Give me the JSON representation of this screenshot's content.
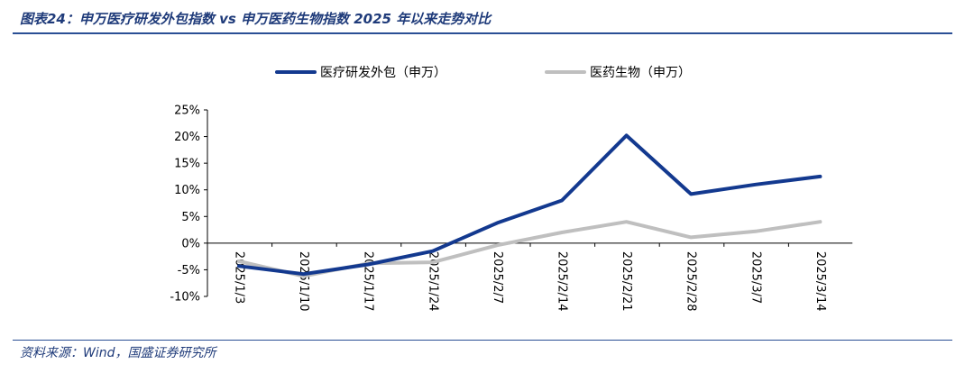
{
  "header": {
    "title": "图表24：申万医疗研发外包指数 vs 申万医药生物指数 2025 年以来走势对比"
  },
  "footer": {
    "source": "资料来源：Wind，国盛证券研究所"
  },
  "chart_data": {
    "type": "line",
    "title": "",
    "xlabel": "",
    "ylabel": "",
    "categories": [
      "2025/1/3",
      "2025/1/10",
      "2025/1/17",
      "2025/1/24",
      "2025/2/7",
      "2025/2/14",
      "2025/2/21",
      "2025/2/28",
      "2025/3/7",
      "2025/3/14"
    ],
    "ylim": [
      -10,
      25
    ],
    "yticks": [
      -10,
      -5,
      0,
      5,
      10,
      15,
      20,
      25
    ],
    "ytick_labels": [
      "-10%",
      "-5%",
      "0%",
      "5%",
      "10%",
      "15%",
      "20%",
      "25%"
    ],
    "grid": false,
    "legend_position": "top",
    "series": [
      {
        "name": "医疗研发外包（申万）",
        "color": "#13398f",
        "values": [
          -4.3,
          -5.8,
          -4.0,
          -1.5,
          3.8,
          8.0,
          20.2,
          9.2,
          11.0,
          12.5
        ]
      },
      {
        "name": "医药生物（申万）",
        "color": "#bfbfbf",
        "values": [
          -3.4,
          -6.2,
          -3.8,
          -3.6,
          -0.4,
          2.0,
          4.0,
          1.1,
          2.2,
          4.0
        ]
      }
    ]
  }
}
